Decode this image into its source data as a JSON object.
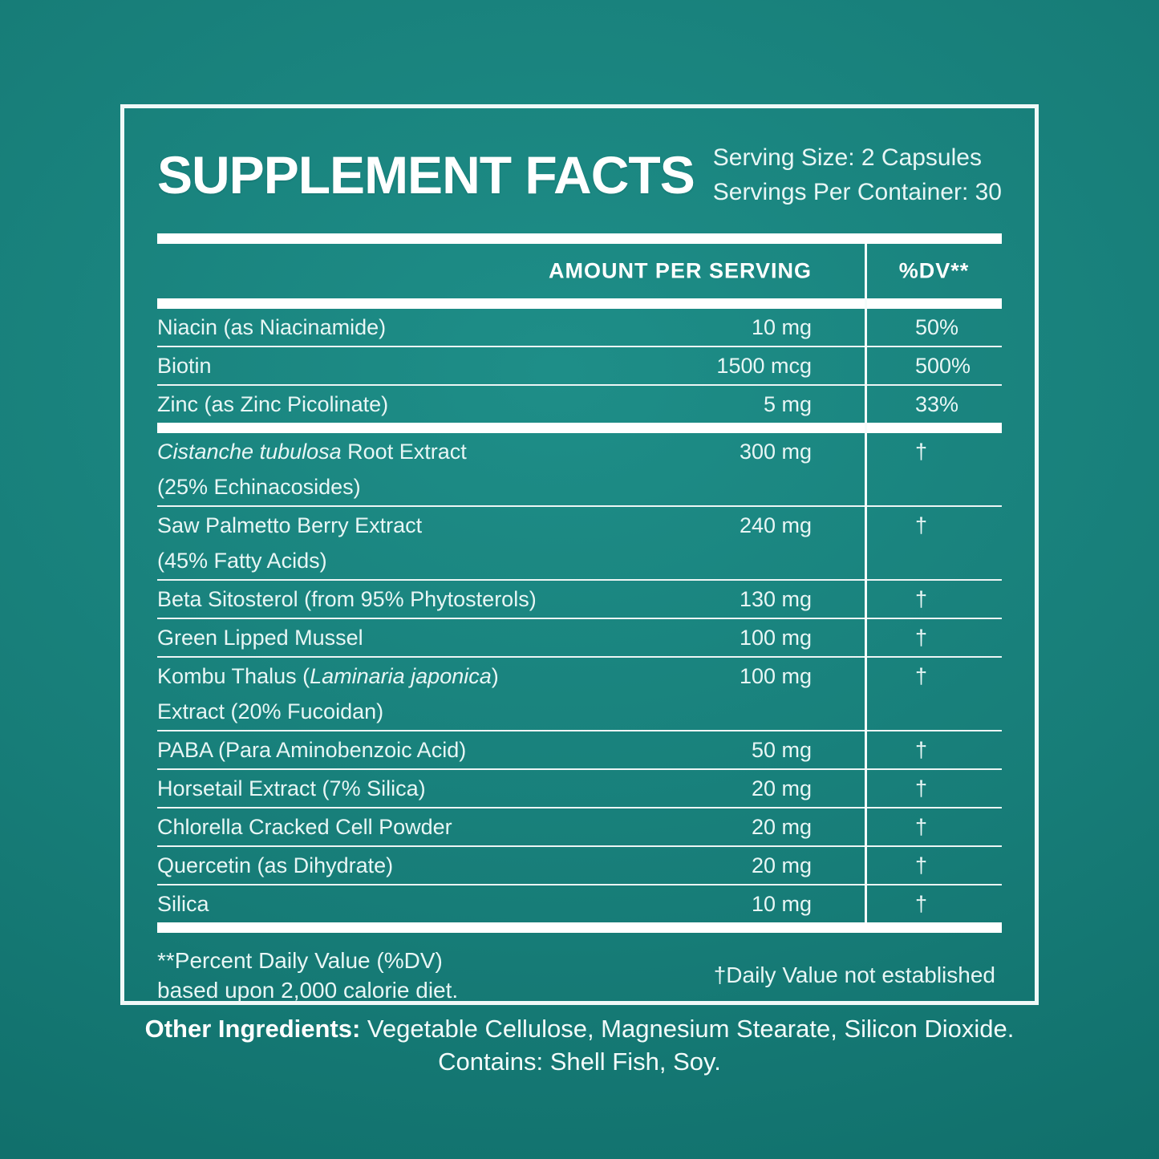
{
  "header": {
    "title": "SUPPLEMENT FACTS",
    "serving_size": "Serving Size: 2 Capsules",
    "servings_per_container": "Servings Per Container: 30"
  },
  "table": {
    "amount_header": "AMOUNT PER SERVING",
    "dv_header": "%DV**",
    "sections": [
      {
        "rows": [
          {
            "name": [
              {
                "t": "Niacin (as Niacinamide)"
              }
            ],
            "amount": "10 mg",
            "dv": "50%"
          },
          {
            "name": [
              {
                "t": "Biotin"
              }
            ],
            "amount": "1500 mcg",
            "dv": "500%"
          },
          {
            "name": [
              {
                "t": "Zinc (as Zinc Picolinate)"
              }
            ],
            "amount": "5 mg",
            "dv": "33%"
          }
        ]
      },
      {
        "rows": [
          {
            "name": [
              {
                "t": "Cistanche tubulosa",
                "i": true
              },
              {
                "t": " Root Extract"
              }
            ],
            "line2": "(25% Echinacosides)",
            "amount": "300 mg",
            "dv": "†"
          },
          {
            "name": [
              {
                "t": "Saw Palmetto Berry Extract"
              }
            ],
            "line2": "(45% Fatty Acids)",
            "amount": "240 mg",
            "dv": "†"
          },
          {
            "name": [
              {
                "t": "Beta Sitosterol (from 95% Phytosterols)"
              }
            ],
            "amount": "130 mg",
            "dv": "†"
          },
          {
            "name": [
              {
                "t": "Green Lipped Mussel"
              }
            ],
            "amount": "100 mg",
            "dv": "†"
          },
          {
            "name": [
              {
                "t": "Kombu Thalus ("
              },
              {
                "t": "Laminaria japonica",
                "i": true
              },
              {
                "t": ")"
              }
            ],
            "line2": "Extract (20% Fucoidan)",
            "amount": "100 mg",
            "dv": "†"
          },
          {
            "name": [
              {
                "t": "PABA (Para Aminobenzoic Acid)"
              }
            ],
            "amount": "50 mg",
            "dv": "†"
          },
          {
            "name": [
              {
                "t": "Horsetail Extract (7% Silica)"
              }
            ],
            "amount": "20 mg",
            "dv": "†"
          },
          {
            "name": [
              {
                "t": "Chlorella Cracked Cell Powder"
              }
            ],
            "amount": "20 mg",
            "dv": "†"
          },
          {
            "name": [
              {
                "t": "Quercetin (as Dihydrate)"
              }
            ],
            "amount": "20 mg",
            "dv": "†"
          },
          {
            "name": [
              {
                "t": "Silica"
              }
            ],
            "amount": "10 mg",
            "dv": "†"
          }
        ]
      }
    ]
  },
  "footnotes": {
    "dv_note_line1": "**Percent Daily Value (%DV)",
    "dv_note_line2": "based upon 2,000 calorie diet.",
    "dagger_note": "†Daily Value not established"
  },
  "other_ingredients": {
    "label": "Other Ingredients:",
    "text": " Vegetable Cellulose, Magnesium Stearate, Silicon Dioxide.",
    "contains": "Contains: Shell Fish, Soy."
  },
  "colors": {
    "background_teal": "#177d78",
    "background_edge": "#0f6c68",
    "panel_border": "#f0f9f8",
    "bar_white": "#ffffff",
    "text_light": "#e8f6f5"
  }
}
